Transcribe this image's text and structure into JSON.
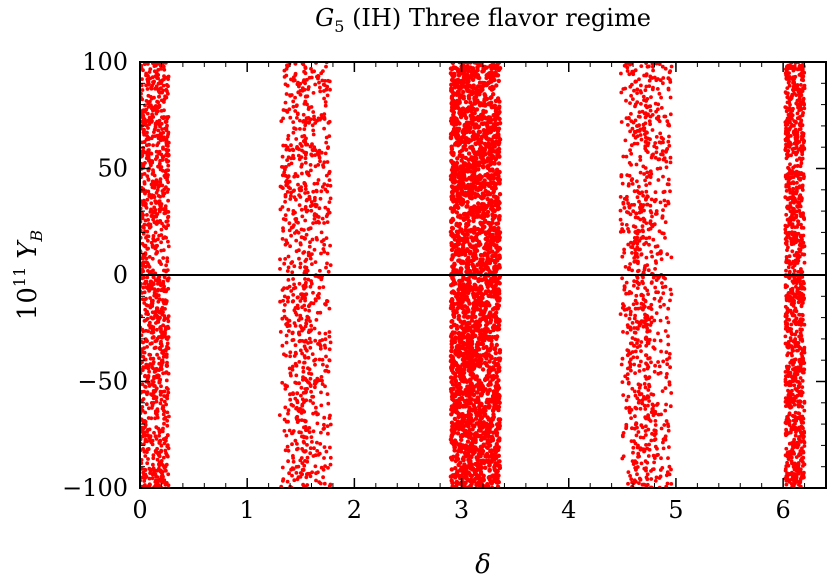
{
  "chart_data": {
    "type": "scatter",
    "title_symbol": "G",
    "title_subscript": "5",
    "title_rest": " (IH) Three flavor regime",
    "xlabel": "δ",
    "ylabel_base": "10",
    "ylabel_exponent": "11",
    "ylabel_symbol": "Y",
    "ylabel_subscript": "B",
    "xlim": [
      0,
      6.4
    ],
    "ylim": [
      -100,
      100
    ],
    "xticks": [
      0,
      1,
      2,
      3,
      4,
      5,
      6
    ],
    "xtick_labels": [
      "0",
      "1",
      "2",
      "3",
      "4",
      "5",
      "6"
    ],
    "yticks": [
      -100,
      -50,
      0,
      50,
      100
    ],
    "ytick_labels": [
      "−100",
      "−50",
      "0",
      "50",
      "100"
    ],
    "zero_line": true,
    "grid": false,
    "point_color": "#ff0000",
    "series": [
      {
        "bands": [
          {
            "x_range": [
              0.0,
              0.27
            ],
            "density": "dense"
          },
          {
            "x_range": [
              1.3,
              1.78
            ],
            "density": "medium"
          },
          {
            "x_range": [
              2.9,
              3.36
            ],
            "density": "solid"
          },
          {
            "x_range": [
              4.48,
              4.96
            ],
            "density": "medium"
          },
          {
            "x_range": [
              6.02,
              6.2
            ],
            "density": "dense"
          }
        ],
        "y_range": [
          -100,
          100
        ]
      }
    ]
  }
}
